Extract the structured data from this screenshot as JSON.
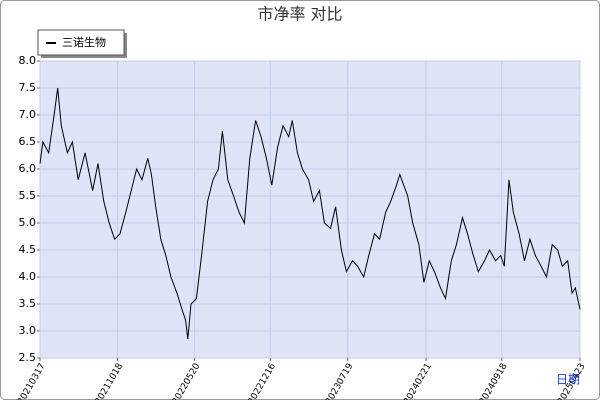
{
  "chart_data": {
    "type": "line",
    "title": "市净率  对比",
    "x_label": "日期",
    "x": [
      "2021-03-17",
      "2021-03-25",
      "2021-04-10",
      "2021-04-25",
      "2021-05-05",
      "2021-05-15",
      "2021-06-01",
      "2021-06-15",
      "2021-07-01",
      "2021-07-20",
      "2021-08-10",
      "2021-08-25",
      "2021-09-10",
      "2021-09-25",
      "2021-10-10",
      "2021-10-25",
      "2021-11-10",
      "2021-11-25",
      "2021-12-10",
      "2021-12-25",
      "2022-01-10",
      "2022-01-20",
      "2022-02-01",
      "2022-02-15",
      "2022-03-01",
      "2022-03-15",
      "2022-04-01",
      "2022-04-15",
      "2022-04-25",
      "2022-05-01",
      "2022-05-10",
      "2022-05-25",
      "2022-06-10",
      "2022-06-25",
      "2022-07-10",
      "2022-07-25",
      "2022-08-05",
      "2022-08-20",
      "2022-09-05",
      "2022-09-20",
      "2022-10-05",
      "2022-10-20",
      "2022-11-05",
      "2022-11-20",
      "2022-12-05",
      "2022-12-20",
      "2023-01-05",
      "2023-01-20",
      "2023-02-05",
      "2023-02-15",
      "2023-03-01",
      "2023-03-15",
      "2023-04-01",
      "2023-04-15",
      "2023-05-01",
      "2023-05-15",
      "2023-06-01",
      "2023-06-15",
      "2023-07-01",
      "2023-07-15",
      "2023-08-01",
      "2023-08-15",
      "2023-09-01",
      "2023-09-15",
      "2023-10-01",
      "2023-10-15",
      "2023-11-01",
      "2023-11-15",
      "2023-12-01",
      "2023-12-10",
      "2024-01-01",
      "2024-01-15",
      "2024-02-01",
      "2024-02-15",
      "2024-03-01",
      "2024-03-15",
      "2024-04-01",
      "2024-04-15",
      "2024-05-01",
      "2024-05-15",
      "2024-06-01",
      "2024-06-15",
      "2024-07-01",
      "2024-07-15",
      "2024-08-01",
      "2024-08-15",
      "2024-09-01",
      "2024-09-15",
      "2024-09-25",
      "2024-10-08",
      "2024-10-20",
      "2024-11-05",
      "2024-11-20",
      "2024-12-05",
      "2024-12-20",
      "2025-01-05",
      "2025-01-20",
      "2025-02-05",
      "2025-02-20",
      "2025-03-05",
      "2025-03-20",
      "2025-04-01",
      "2025-04-10",
      "2025-04-23"
    ],
    "series": [
      {
        "name": "三诺生物",
        "color": "#000000",
        "values": [
          6.1,
          6.5,
          6.3,
          7.0,
          7.5,
          6.8,
          6.3,
          6.5,
          5.8,
          6.3,
          5.6,
          6.1,
          5.4,
          5.0,
          4.7,
          4.8,
          5.2,
          5.6,
          6.0,
          5.8,
          6.2,
          5.9,
          5.3,
          4.7,
          4.4,
          4.0,
          3.7,
          3.4,
          3.2,
          2.85,
          3.5,
          3.6,
          4.5,
          5.4,
          5.8,
          6.0,
          6.7,
          5.8,
          5.5,
          5.2,
          5.0,
          6.2,
          6.9,
          6.6,
          6.2,
          5.7,
          6.4,
          6.8,
          6.6,
          6.9,
          6.3,
          6.0,
          5.8,
          5.4,
          5.6,
          5.0,
          4.9,
          5.3,
          4.5,
          4.1,
          4.3,
          4.2,
          4.0,
          4.4,
          4.8,
          4.7,
          5.2,
          5.4,
          5.7,
          5.9,
          5.5,
          5.0,
          4.6,
          3.9,
          4.3,
          4.1,
          3.8,
          3.6,
          4.3,
          4.6,
          5.1,
          4.8,
          4.4,
          4.1,
          4.3,
          4.5,
          4.3,
          4.4,
          4.2,
          5.8,
          5.2,
          4.8,
          4.3,
          4.7,
          4.4,
          4.2,
          4.0,
          4.6,
          4.5,
          4.2,
          4.3,
          3.7,
          3.8,
          3.4
        ]
      }
    ],
    "xlim": [
      "2021-03-17",
      "2025-04-23"
    ],
    "xticks": [
      {
        "value": "2021-03-17",
        "label": "20210317"
      },
      {
        "value": "2021-10-18",
        "label": "20211018"
      },
      {
        "value": "2022-05-20",
        "label": "20220520"
      },
      {
        "value": "2022-12-16",
        "label": "20221216"
      },
      {
        "value": "2023-07-19",
        "label": "20230719"
      },
      {
        "value": "2024-02-21",
        "label": "20240221"
      },
      {
        "value": "2024-09-18",
        "label": "20240918"
      },
      {
        "value": "2025-04-23",
        "label": "20250423"
      }
    ],
    "ylim": [
      2.5,
      8.0
    ],
    "yticks": [
      2.5,
      {
        "value": 3,
        "label": "3.0"
      },
      3.5,
      {
        "value": 4,
        "label": "4.0"
      },
      4.5,
      {
        "value": 5,
        "label": "5.0"
      },
      5.5,
      {
        "value": 6,
        "label": "6.0"
      },
      6.5,
      {
        "value": 7,
        "label": "7.0"
      },
      7.5,
      {
        "value": 8,
        "label": "8.0"
      }
    ],
    "grid": true,
    "legend": "top-left"
  }
}
